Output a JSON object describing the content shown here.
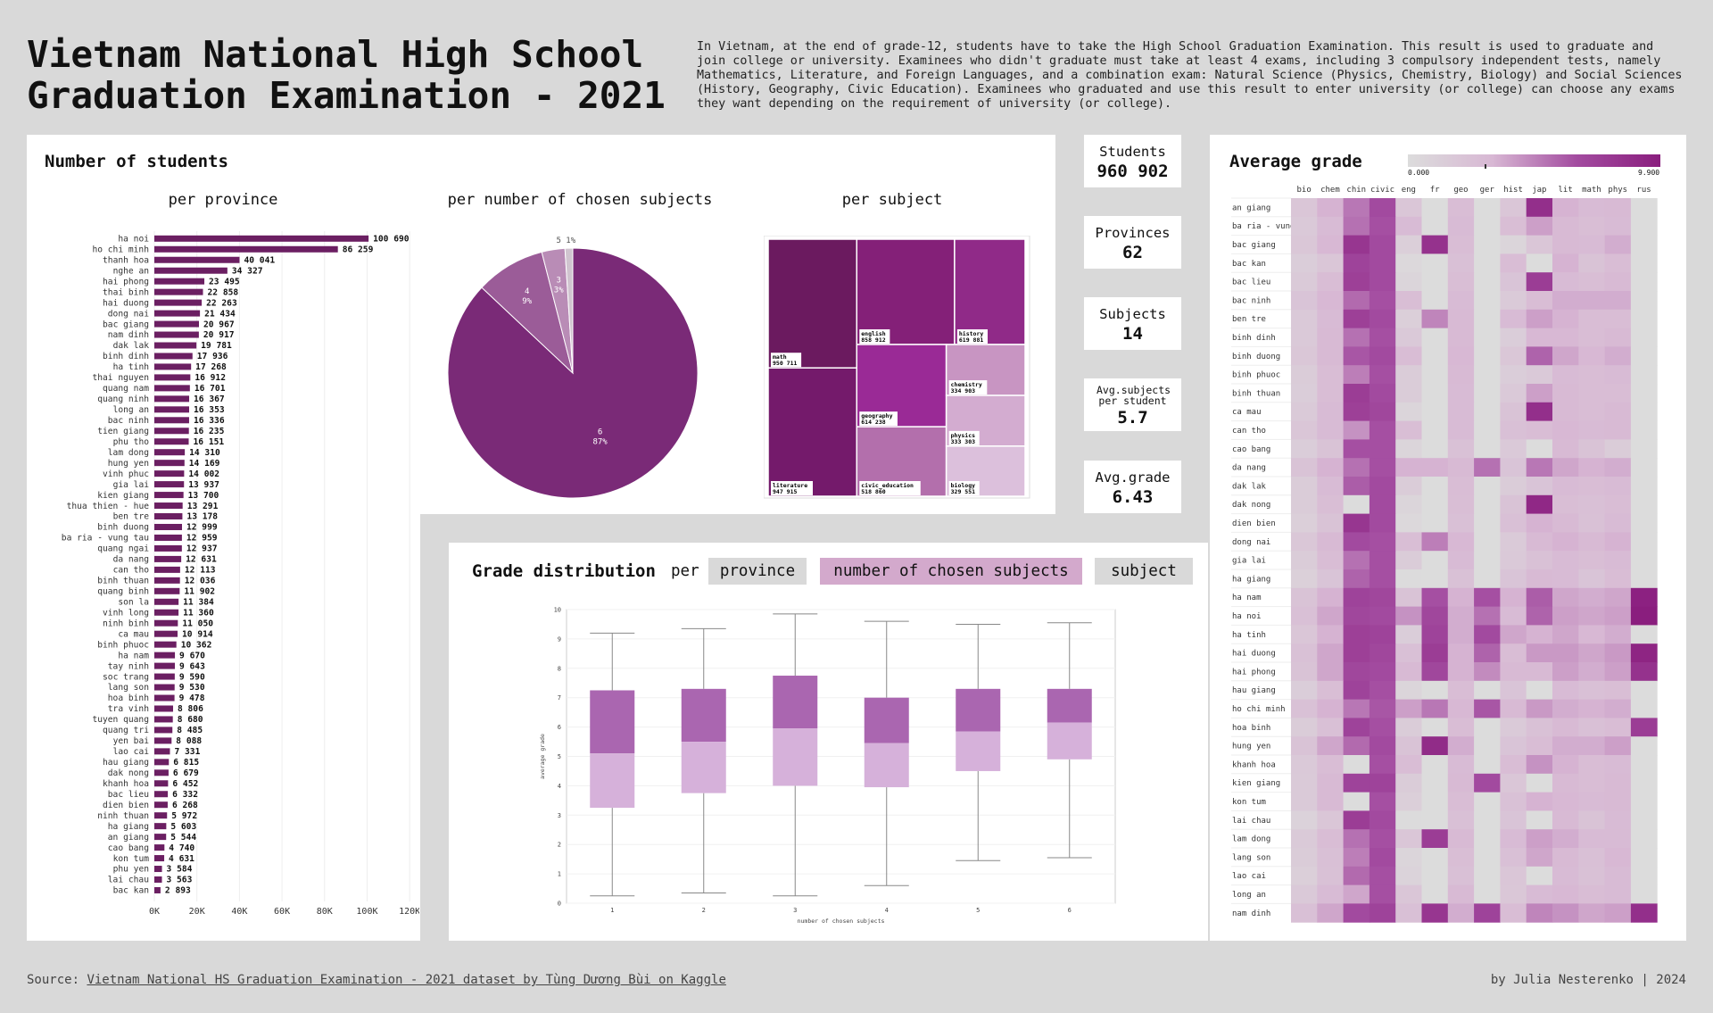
{
  "page": {
    "title": "Vietnam National High School\nGraduation Examination - 2021",
    "intro": "In Vietnam, at the end of grade-12, students have to take the High School Graduation Examination. This result is used to graduate and join college or university. Examinees who didn't graduate must take at least 4 exams, including 3 compulsory independent tests, namely Mathematics, Literature, and Foreign Languages, and a combination exam: Natural Science (Physics, Chemistry, Biology) and Social Sciences (History, Geography, Civic Education). Examinees who graduated and use this result to enter university (or college) can choose any exams they want depending on the requirement of university (or college).",
    "source_prefix": "Source: ",
    "source_link": "Vietnam National HS Graduation Examination - 2021 dataset by Tùng Dương Bùi on Kaggle",
    "credit": "by Julia Nesterenko | 2024"
  },
  "students": {
    "heading": "Number of students",
    "per_province": "per province",
    "per_subjects_count": "per number of chosen subjects",
    "per_subject": "per subject"
  },
  "kpis": [
    {
      "label": "Students",
      "value": "960 902"
    },
    {
      "label": "Provinces",
      "value": "62"
    },
    {
      "label": "Subjects",
      "value": "14"
    },
    {
      "label": "Avg.subjects per student",
      "value": "5.7"
    },
    {
      "label": "Avg.grade",
      "value": "6.43"
    }
  ],
  "distribution": {
    "heading": "Grade distribution",
    "per": "per",
    "buttons": [
      "province",
      "number of chosen subjects",
      "subject"
    ],
    "active": "number of chosen subjects"
  },
  "heatmap": {
    "heading": "Average grade",
    "scale_min": "0.000",
    "scale_max": "9.900"
  },
  "colors": {
    "bar": "#6b1f62",
    "pie_main": "#7a2a77",
    "pie_b": "#9b5c98",
    "pie_c": "#b98cb6",
    "pie_d": "#d0c4cf",
    "box_upper": "#aa66b0",
    "box_lower": "#d6b1da",
    "btn_active": "#d3a9cc",
    "btn_idle": "#d9d9d9"
  },
  "chart_data": [
    {
      "type": "bar",
      "orientation": "horizontal",
      "subtitle": "per province",
      "categories": [
        "ha noi",
        "ho chi minh",
        "thanh hoa",
        "nghe an",
        "hai phong",
        "thai binh",
        "hai duong",
        "dong nai",
        "bac giang",
        "nam dinh",
        "dak lak",
        "binh dinh",
        "ha tinh",
        "thai nguyen",
        "quang nam",
        "quang ninh",
        "long an",
        "bac ninh",
        "tien giang",
        "phu tho",
        "lam dong",
        "hung yen",
        "vinh phuc",
        "gia lai",
        "kien giang",
        "thua thien - hue",
        "ben tre",
        "binh duong",
        "ba ria - vung tau",
        "quang ngai",
        "da nang",
        "can tho",
        "binh thuan",
        "quang binh",
        "son la",
        "vinh long",
        "ninh binh",
        "ca mau",
        "binh phuoc",
        "ha nam",
        "tay ninh",
        "soc trang",
        "lang son",
        "hoa binh",
        "tra vinh",
        "tuyen quang",
        "quang tri",
        "yen bai",
        "lao cai",
        "hau giang",
        "dak nong",
        "khanh hoa",
        "bac lieu",
        "dien bien",
        "ninh thuan",
        "ha giang",
        "an giang",
        "cao bang",
        "kon tum",
        "phu yen",
        "lai chau",
        "bac kan"
      ],
      "values": [
        100690,
        86259,
        40041,
        34327,
        23495,
        22858,
        22263,
        21434,
        20967,
        20917,
        19781,
        17936,
        17268,
        16912,
        16701,
        16367,
        16353,
        16336,
        16235,
        16151,
        14310,
        14169,
        14002,
        13937,
        13700,
        13291,
        13178,
        12999,
        12959,
        12937,
        12631,
        12113,
        12036,
        11902,
        11384,
        11360,
        11050,
        10914,
        10362,
        9670,
        9643,
        9590,
        9530,
        9478,
        8806,
        8680,
        8485,
        8088,
        7331,
        6815,
        6679,
        6452,
        6332,
        6268,
        5972,
        5603,
        5544,
        4740,
        4631,
        3584,
        3563,
        2893
      ],
      "labels": [
        "100 690",
        "86 259",
        "40 041",
        "34 327",
        "23 495",
        "22 858",
        "22 263",
        "21 434",
        "20 967",
        "20 917",
        "19 781",
        "17 936",
        "17 268",
        "16 912",
        "16 701",
        "16 367",
        "16 353",
        "16 336",
        "16 235",
        "16 151",
        "14 310",
        "14 169",
        "14 002",
        "13 937",
        "13 700",
        "13 291",
        "13 178",
        "12 999",
        "12 959",
        "12 937",
        "12 631",
        "12 113",
        "12 036",
        "11 902",
        "11 384",
        "11 360",
        "11 050",
        "10 914",
        "10 362",
        "9 670",
        "9 643",
        "9 590",
        "9 530",
        "9 478",
        "8 806",
        "8 680",
        "8 485",
        "8 088",
        "7 331",
        "6 815",
        "6 679",
        "6 452",
        "6 332",
        "6 268",
        "5 972",
        "5 603",
        "5 544",
        "4 740",
        "4 631",
        "3 584",
        "3 563",
        "2 893"
      ],
      "xticks": [
        "0K",
        "20K",
        "40K",
        "60K",
        "80K",
        "100K",
        "120K"
      ],
      "xlim": [
        0,
        130000
      ]
    },
    {
      "type": "pie",
      "subtitle": "per number of chosen subjects",
      "slices": [
        {
          "label": "6",
          "pct": 87,
          "text": "87%"
        },
        {
          "label": "4",
          "pct": 9,
          "text": "9%"
        },
        {
          "label": "3",
          "pct": 3,
          "text": "3%"
        },
        {
          "label": "5",
          "pct": 1,
          "text": "1%"
        }
      ]
    },
    {
      "type": "treemap",
      "subtitle": "per subject",
      "items": [
        {
          "name": "math",
          "label": "950 711",
          "color": "#6b1a5f"
        },
        {
          "name": "literature",
          "label": "947 915",
          "color": "#741a6b"
        },
        {
          "name": "english",
          "label": "858 912",
          "color": "#842078"
        },
        {
          "name": "history",
          "label": "619 881",
          "color": "#902a88"
        },
        {
          "name": "geography",
          "label": "614 238",
          "color": "#9a2a96"
        },
        {
          "name": "civic_education",
          "label": "518 860",
          "color": "#b36fac"
        },
        {
          "name": "chemistry",
          "label": "334 903",
          "color": "#c895c2"
        },
        {
          "name": "physics",
          "label": "333 303",
          "color": "#d3acd0"
        },
        {
          "name": "biology",
          "label": "329 551",
          "color": "#dcc0dc"
        }
      ]
    },
    {
      "type": "box",
      "xlabel": "number of chosen subjects",
      "ylabel": "average grade",
      "ylim": [
        0,
        10
      ],
      "yticks": [
        "0",
        "1",
        "2",
        "3",
        "4",
        "5",
        "6",
        "7",
        "8",
        "9",
        "10"
      ],
      "boxes": [
        {
          "x": "1",
          "min": 0.25,
          "q1": 3.25,
          "median": 5.1,
          "q3": 7.25,
          "max": 9.2
        },
        {
          "x": "2",
          "min": 0.35,
          "q1": 3.75,
          "median": 5.5,
          "q3": 7.3,
          "max": 9.35
        },
        {
          "x": "3",
          "min": 0.25,
          "q1": 4.0,
          "median": 5.95,
          "q3": 7.75,
          "max": 9.85
        },
        {
          "x": "4",
          "min": 0.6,
          "q1": 3.95,
          "median": 5.45,
          "q3": 7.0,
          "max": 9.6
        },
        {
          "x": "5",
          "min": 1.45,
          "q1": 4.5,
          "median": 5.85,
          "q3": 7.3,
          "max": 9.5
        },
        {
          "x": "6",
          "min": 1.55,
          "q1": 4.9,
          "median": 6.15,
          "q3": 7.3,
          "max": 9.55
        }
      ]
    },
    {
      "type": "heatmap",
      "title": "Average grade",
      "columns": [
        "bio",
        "chem",
        "chin",
        "civic",
        "eng",
        "fr",
        "geo",
        "ger",
        "hist",
        "jap",
        "lit",
        "math",
        "phys",
        "rus"
      ],
      "rows": [
        "an giang",
        "ba ria - vung tau",
        "bac giang",
        "bac kan",
        "bac lieu",
        "bac ninh",
        "ben tre",
        "binh dinh",
        "binh duong",
        "binh phuoc",
        "binh thuan",
        "ca mau",
        "can tho",
        "cao bang",
        "da nang",
        "dak lak",
        "dak nong",
        "dien bien",
        "dong nai",
        "gia lai",
        "ha giang",
        "ha nam",
        "ha noi",
        "ha tinh",
        "hai duong",
        "hai phong",
        "hau giang",
        "ho chi minh",
        "hoa binh",
        "hung yen",
        "khanh hoa",
        "kien giang",
        "kon tum",
        "lai chau",
        "lam dong",
        "lang son",
        "lao cai",
        "long an",
        "nam dinh"
      ],
      "values": [
        [
          6.0,
          7.0,
          7.9,
          8.6,
          6.0,
          null,
          6.6,
          null,
          6.0,
          9.4,
          7.0,
          6.7,
          6.8,
          null
        ],
        [
          5.8,
          6.7,
          8.0,
          8.5,
          6.7,
          null,
          6.7,
          null,
          6.5,
          7.3,
          6.8,
          6.5,
          6.7,
          null
        ],
        [
          5.9,
          6.9,
          9.2,
          8.6,
          5.4,
          9.3,
          6.6,
          null,
          5.0,
          6.0,
          6.8,
          6.7,
          7.1,
          null
        ],
        [
          5.5,
          6.0,
          8.8,
          8.6,
          4.8,
          null,
          6.4,
          null,
          6.6,
          null,
          7.0,
          6.2,
          6.6,
          null
        ],
        [
          5.7,
          6.6,
          8.9,
          8.6,
          5.0,
          null,
          6.5,
          null,
          6.1,
          9.0,
          6.7,
          6.5,
          6.8,
          null
        ],
        [
          6.1,
          6.9,
          8.1,
          8.5,
          6.5,
          null,
          6.7,
          null,
          5.7,
          6.6,
          7.1,
          7.1,
          7.1,
          null
        ],
        [
          5.8,
          6.7,
          8.9,
          8.6,
          5.4,
          7.7,
          6.8,
          null,
          6.7,
          7.3,
          7.0,
          6.6,
          6.6,
          null
        ],
        [
          5.8,
          6.8,
          8.0,
          8.5,
          5.8,
          null,
          6.8,
          null,
          5.5,
          6.9,
          6.9,
          6.6,
          6.8,
          null
        ],
        [
          5.9,
          6.8,
          8.4,
          8.6,
          6.6,
          null,
          6.9,
          null,
          5.9,
          8.2,
          7.2,
          6.9,
          7.1,
          null
        ],
        [
          5.6,
          6.6,
          7.8,
          8.5,
          5.6,
          null,
          6.8,
          null,
          5.5,
          5.8,
          6.7,
          6.6,
          6.7,
          null
        ],
        [
          5.5,
          6.6,
          9.0,
          8.6,
          5.6,
          null,
          6.7,
          null,
          5.8,
          7.3,
          6.8,
          6.6,
          6.6,
          null
        ],
        [
          5.7,
          6.7,
          8.9,
          8.7,
          5.0,
          null,
          6.7,
          null,
          6.2,
          9.4,
          6.8,
          6.6,
          6.8,
          null
        ],
        [
          6.0,
          6.7,
          7.5,
          8.5,
          6.5,
          null,
          6.7,
          null,
          6.4,
          6.6,
          6.9,
          6.7,
          6.8,
          null
        ],
        [
          5.5,
          6.2,
          8.5,
          8.5,
          5.0,
          null,
          6.3,
          null,
          5.8,
          null,
          6.8,
          6.2,
          5.6,
          null
        ],
        [
          6.2,
          7.0,
          8.0,
          8.5,
          7.0,
          7.0,
          6.8,
          8.0,
          6.1,
          7.9,
          7.2,
          7.0,
          7.1,
          null
        ],
        [
          5.6,
          6.7,
          8.3,
          8.6,
          5.6,
          null,
          6.6,
          null,
          5.6,
          6.1,
          6.7,
          6.6,
          6.7,
          null
        ],
        [
          5.6,
          6.5,
          null,
          8.6,
          5.0,
          null,
          6.5,
          null,
          6.2,
          9.6,
          6.5,
          6.4,
          6.6,
          null
        ],
        [
          5.4,
          6.2,
          9.2,
          8.6,
          4.8,
          null,
          6.4,
          null,
          6.4,
          7.0,
          6.8,
          6.3,
          6.7,
          null
        ],
        [
          5.9,
          6.8,
          8.6,
          8.5,
          6.5,
          7.8,
          6.9,
          null,
          5.7,
          6.8,
          7.0,
          6.8,
          7.0,
          null
        ],
        [
          5.6,
          6.6,
          8.0,
          8.5,
          5.6,
          null,
          6.7,
          null,
          5.8,
          6.3,
          6.7,
          6.5,
          6.7,
          null
        ],
        [
          5.3,
          6.1,
          8.2,
          8.5,
          4.6,
          null,
          6.3,
          null,
          6.1,
          6.8,
          6.7,
          6.1,
          6.6,
          null
        ],
        [
          6.2,
          7.0,
          8.8,
          8.7,
          6.2,
          8.5,
          7.0,
          8.5,
          7.0,
          8.3,
          7.2,
          7.1,
          7.2,
          9.8
        ],
        [
          6.4,
          7.2,
          8.7,
          8.6,
          7.5,
          8.7,
          7.1,
          8.0,
          6.7,
          8.2,
          7.3,
          7.2,
          7.3,
          9.9
        ],
        [
          6.0,
          7.0,
          8.9,
          8.8,
          5.5,
          8.8,
          7.1,
          8.6,
          7.2,
          7.0,
          7.2,
          6.9,
          7.1,
          null
        ],
        [
          6.3,
          7.2,
          8.9,
          8.7,
          6.4,
          9.0,
          7.0,
          8.2,
          6.6,
          7.4,
          7.4,
          7.2,
          7.4,
          9.7
        ],
        [
          6.2,
          7.2,
          8.7,
          8.6,
          6.8,
          8.7,
          7.0,
          7.6,
          6.8,
          6.8,
          7.3,
          7.1,
          7.3,
          9.3
        ],
        [
          5.5,
          6.5,
          8.8,
          8.5,
          5.0,
          null,
          6.6,
          null,
          6.1,
          null,
          6.7,
          6.4,
          6.5,
          null
        ],
        [
          6.3,
          7.0,
          7.9,
          8.4,
          7.3,
          7.9,
          6.9,
          8.4,
          6.8,
          7.4,
          7.1,
          7.0,
          7.1,
          null
        ],
        [
          5.6,
          6.4,
          8.8,
          8.5,
          5.6,
          null,
          6.6,
          null,
          5.7,
          6.3,
          6.8,
          6.4,
          6.6,
          9.0
        ],
        [
          6.2,
          7.2,
          8.1,
          8.6,
          6.2,
          9.5,
          7.1,
          null,
          6.1,
          6.6,
          7.1,
          7.1,
          7.3,
          null
        ],
        [
          5.8,
          6.6,
          null,
          8.5,
          6.6,
          null,
          6.7,
          null,
          6.6,
          7.5,
          7.0,
          6.6,
          6.7,
          null
        ],
        [
          5.7,
          6.8,
          8.8,
          8.8,
          5.6,
          null,
          6.8,
          8.6,
          6.0,
          null,
          6.8,
          6.6,
          6.8,
          null
        ],
        [
          5.7,
          6.8,
          null,
          8.5,
          5.4,
          null,
          6.6,
          null,
          6.3,
          7.0,
          6.9,
          6.7,
          6.8,
          null
        ],
        [
          5.2,
          6.0,
          9.0,
          8.6,
          4.6,
          null,
          6.4,
          null,
          6.1,
          null,
          6.8,
          6.2,
          6.7,
          null
        ],
        [
          5.7,
          6.6,
          8.0,
          8.5,
          6.0,
          9.0,
          6.8,
          null,
          6.7,
          7.3,
          7.1,
          6.7,
          6.7,
          null
        ],
        [
          5.6,
          6.4,
          7.8,
          8.6,
          5.0,
          null,
          6.5,
          null,
          6.4,
          7.2,
          6.8,
          6.4,
          6.9,
          null
        ],
        [
          5.4,
          6.3,
          8.1,
          8.5,
          5.1,
          null,
          6.4,
          null,
          6.0,
          null,
          6.7,
          6.3,
          6.7,
          null
        ],
        [
          5.8,
          6.7,
          7.2,
          8.5,
          6.0,
          null,
          6.8,
          null,
          5.9,
          6.7,
          6.9,
          6.6,
          6.7,
          null
        ],
        [
          6.4,
          7.2,
          8.6,
          8.8,
          6.4,
          9.2,
          7.1,
          8.8,
          6.6,
          7.7,
          7.5,
          7.2,
          7.3,
          9.4
        ]
      ]
    }
  ]
}
